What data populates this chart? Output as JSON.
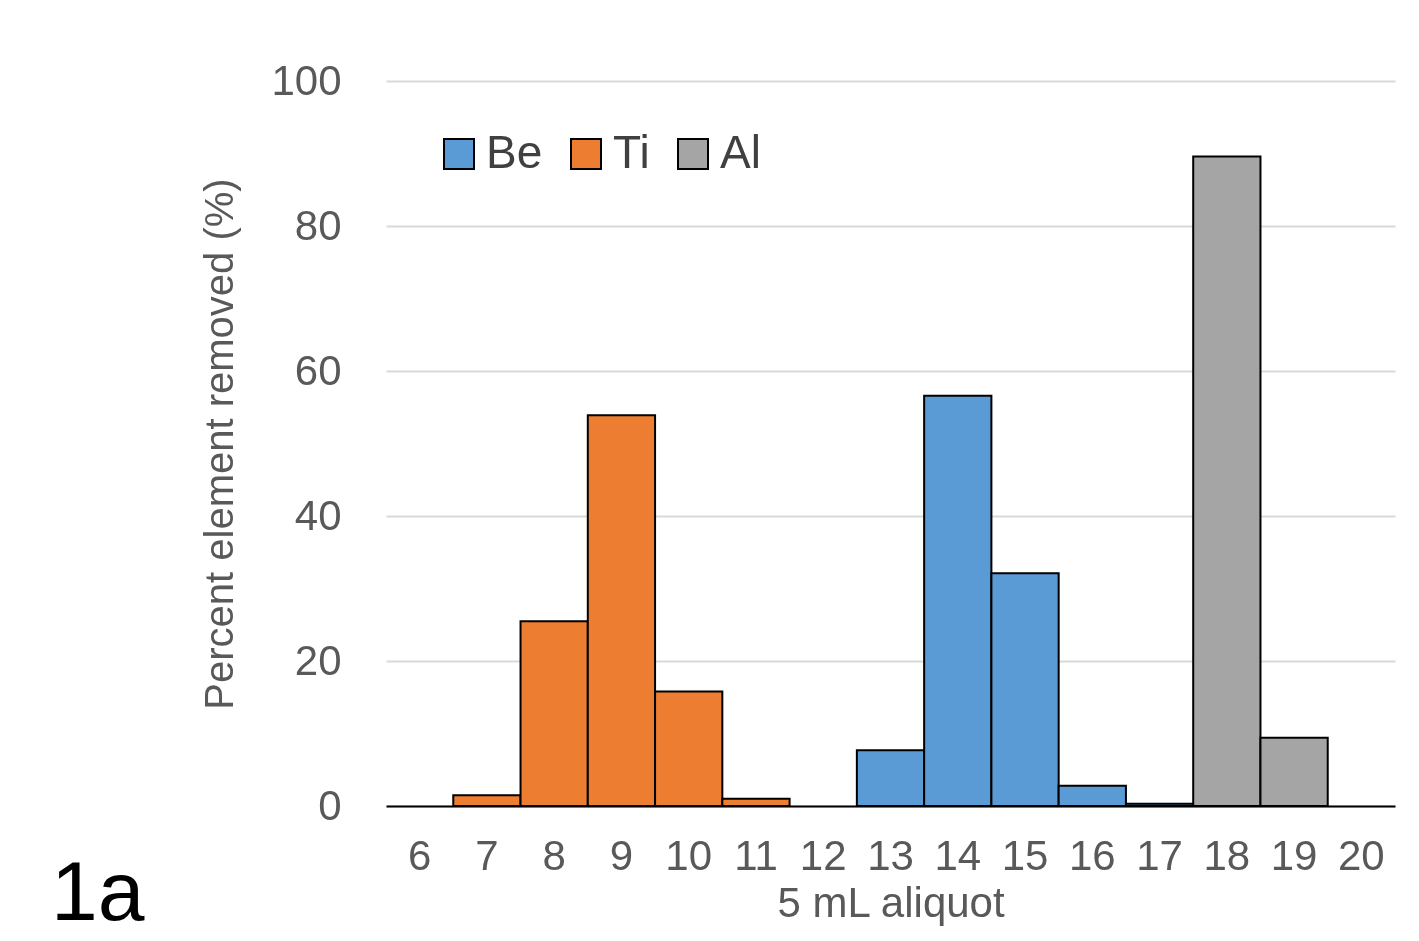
{
  "chart_data": {
    "type": "bar",
    "xlabel": "5 mL aliquot",
    "ylabel": "Percent element removed (%)",
    "categories": [
      "6",
      "7",
      "8",
      "9",
      "10",
      "11",
      "12",
      "13",
      "14",
      "15",
      "16",
      "17",
      "18",
      "19",
      "20"
    ],
    "series": [
      {
        "name": "Be",
        "color": "#5b9bd5",
        "values": [
          null,
          null,
          null,
          null,
          null,
          null,
          null,
          7.7,
          56.6,
          32.1,
          2.8,
          0.3,
          null,
          null,
          null
        ]
      },
      {
        "name": "Ti",
        "color": "#ed7d31",
        "values": [
          null,
          1.5,
          25.5,
          53.9,
          15.8,
          1.0,
          null,
          null,
          null,
          null,
          null,
          null,
          null,
          null,
          null
        ]
      },
      {
        "name": "Al",
        "color": "#a5a5a5",
        "values": [
          null,
          null,
          null,
          null,
          null,
          null,
          null,
          null,
          null,
          null,
          null,
          null,
          89.6,
          9.4,
          null
        ]
      }
    ],
    "ylim": [
      0,
      100
    ],
    "yticks": [
      0,
      20,
      40,
      60,
      80,
      100
    ],
    "grid": "y",
    "legend": "top left",
    "annotations": [
      "1a"
    ]
  }
}
